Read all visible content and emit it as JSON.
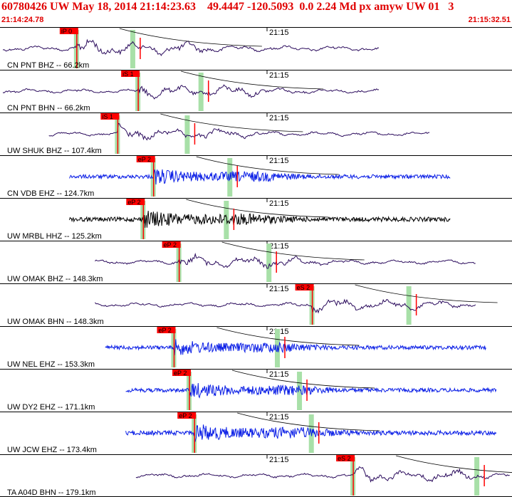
{
  "header": {
    "title": "60780426 UW May 18, 2014 21:14:23.63    49.4447 -120.5093  0.0 2.24 Md px amyw UW 01   3",
    "time_start": "21:14:24.78",
    "time_end": "21:15:32.51"
  },
  "colors": {
    "header_text": "#e00000",
    "trace_purple": "#2a0a5c",
    "trace_blue": "#0a1ee6",
    "trace_black": "#000000",
    "pick_red": "#ff0000",
    "window_green": "#a8e0a8"
  },
  "minute_label": "21:15",
  "traces": [
    {
      "label": "CN PNT BHZ -- 66.2km",
      "pick": "iP 0",
      "color": "purple",
      "start": 0.0,
      "end": 0.74,
      "amp": 0.55,
      "onset": 0.15
    },
    {
      "label": "CN PNT BHN -- 66.2km",
      "pick": "iS 1",
      "color": "purple",
      "start": 0.0,
      "end": 0.74,
      "amp": 0.45,
      "onset": 0.27
    },
    {
      "label": "UW SHUK BHZ -- 107.4km",
      "pick": "iS 1",
      "color": "purple",
      "start": 0.09,
      "end": 0.84,
      "amp": 0.45,
      "onset": 0.23
    },
    {
      "label": "CN VDB EHZ -- 124.7km",
      "pick": "eP 2",
      "color": "blue",
      "start": 0.13,
      "end": 0.88,
      "amp": 0.4,
      "onset": 0.3
    },
    {
      "label": "UW MRBL HHZ -- 125.2km",
      "pick": "eP 2",
      "color": "black",
      "start": 0.13,
      "end": 0.88,
      "amp": 0.45,
      "onset": 0.28
    },
    {
      "label": "UW OMAK BHZ -- 148.3km",
      "pick": "eP 2",
      "color": "purple",
      "start": 0.18,
      "end": 0.93,
      "amp": 0.45,
      "onset": 0.35
    },
    {
      "label": "UW OMAK BHN -- 148.3km",
      "pick": "eS 2",
      "color": "purple",
      "start": 0.18,
      "end": 0.93,
      "amp": 0.45,
      "onset": 0.61
    },
    {
      "label": "UW NEL EHZ -- 153.3km",
      "pick": "eP 2",
      "color": "blue",
      "start": 0.2,
      "end": 0.95,
      "amp": 0.4,
      "onset": 0.34
    },
    {
      "label": "UW DY2 EHZ -- 171.1km",
      "pick": "eP 2",
      "color": "blue",
      "start": 0.24,
      "end": 0.97,
      "amp": 0.4,
      "onset": 0.37
    },
    {
      "label": "UW JCW EHZ -- 173.4km",
      "pick": "eP 2",
      "color": "blue",
      "start": 0.24,
      "end": 0.97,
      "amp": 0.45,
      "onset": 0.38
    },
    {
      "label": "TA A04D BHN -- 179.1km",
      "pick": "eS 2",
      "color": "purple",
      "start": 0.26,
      "end": 1.0,
      "amp": 0.45,
      "onset": 0.69
    }
  ]
}
